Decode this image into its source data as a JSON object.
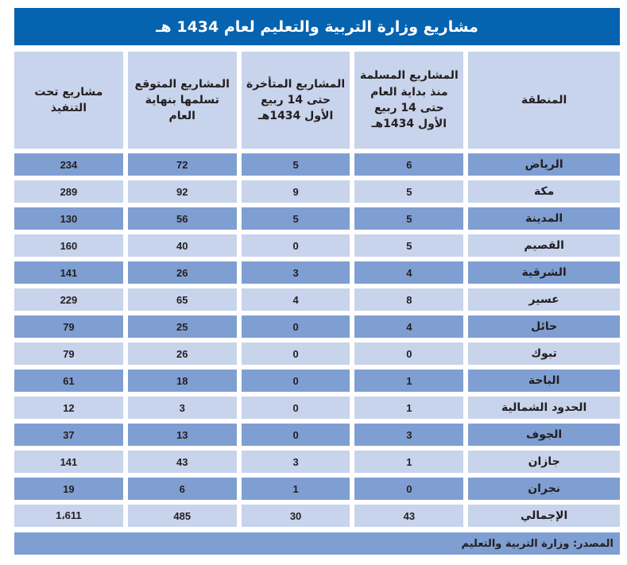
{
  "title": "مشاريع وزارة التربية والتعليم لعام 1434 هـ",
  "table": {
    "headers": [
      "المنطقة",
      "المشاريع المسلمة منذ بداية العام حتى 14 ربيع الأول 1434هـ",
      "المشاريع المتأخرة حتى 14 ربيع الأول 1434هـ",
      "المشاريع المتوقع تسلمها بنهاية العام",
      "مشاريع تحت التنفيذ"
    ],
    "rows": [
      {
        "region": "الرياض",
        "delivered": "6",
        "delayed": "5",
        "expected": "72",
        "under_execution": "234"
      },
      {
        "region": "مكة",
        "delivered": "5",
        "delayed": "9",
        "expected": "92",
        "under_execution": "289"
      },
      {
        "region": "المدينة",
        "delivered": "5",
        "delayed": "5",
        "expected": "56",
        "under_execution": "130"
      },
      {
        "region": "القصيم",
        "delivered": "5",
        "delayed": "0",
        "expected": "40",
        "under_execution": "160"
      },
      {
        "region": "الشرقية",
        "delivered": "4",
        "delayed": "3",
        "expected": "26",
        "under_execution": "141"
      },
      {
        "region": "عسير",
        "delivered": "8",
        "delayed": "4",
        "expected": "65",
        "under_execution": "229"
      },
      {
        "region": "حائل",
        "delivered": "4",
        "delayed": "0",
        "expected": "25",
        "under_execution": "79"
      },
      {
        "region": "تبوك",
        "delivered": "0",
        "delayed": "0",
        "expected": "26",
        "under_execution": "79"
      },
      {
        "region": "الباحة",
        "delivered": "1",
        "delayed": "0",
        "expected": "18",
        "under_execution": "61"
      },
      {
        "region": "الحدود الشمالية",
        "delivered": "1",
        "delayed": "0",
        "expected": "3",
        "under_execution": "12"
      },
      {
        "region": "الجوف",
        "delivered": "3",
        "delayed": "0",
        "expected": "13",
        "under_execution": "37"
      },
      {
        "region": "جازان",
        "delivered": "1",
        "delayed": "3",
        "expected": "43",
        "under_execution": "141"
      },
      {
        "region": "نجران",
        "delivered": "0",
        "delayed": "1",
        "expected": "6",
        "under_execution": "19"
      },
      {
        "region": "الإجمالي",
        "delivered": "43",
        "delayed": "30",
        "expected": "485",
        "under_execution": "1،611"
      }
    ]
  },
  "source": "المصدر: وزارة التربية والتعليم",
  "colors": {
    "title_bg": "#0563b0",
    "header_bg": "#c8d3ec",
    "row_dark": "#7f9fd3",
    "row_light": "#c8d3ec"
  }
}
